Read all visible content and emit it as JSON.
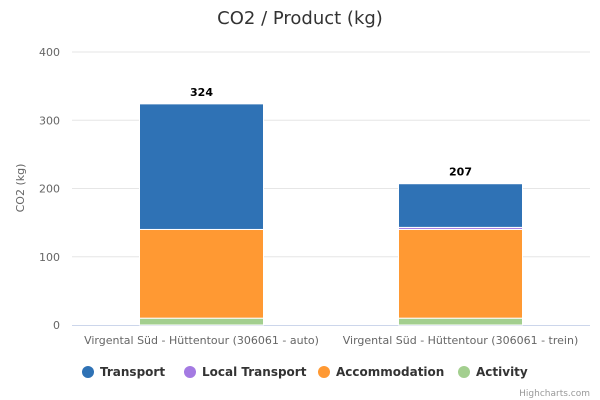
{
  "chart_data": {
    "type": "bar",
    "stacked": true,
    "title": "CO2 / Product (kg)",
    "xlabel": "",
    "ylabel": "CO2 (kg)",
    "ylim": [
      0,
      400
    ],
    "yticks": [
      0,
      100,
      200,
      300,
      400
    ],
    "grid": true,
    "legend_position": "bottom",
    "categories": [
      "Virgental Süd - Hüttentour (306061 - auto)",
      "Virgental Süd - Hüttentour (306061 - trein)"
    ],
    "series": [
      {
        "name": "Transport",
        "color": "#2f72b5",
        "values": [
          184,
          64
        ]
      },
      {
        "name": "Local Transport",
        "color": "#a47ae2",
        "values": [
          0,
          3
        ]
      },
      {
        "name": "Accommodation",
        "color": "#ff9933",
        "values": [
          130,
          130
        ]
      },
      {
        "name": "Activity",
        "color": "#a3cf8f",
        "values": [
          10,
          10
        ]
      }
    ],
    "totals": [
      "324",
      "207"
    ]
  },
  "credit": "Highcharts.com"
}
